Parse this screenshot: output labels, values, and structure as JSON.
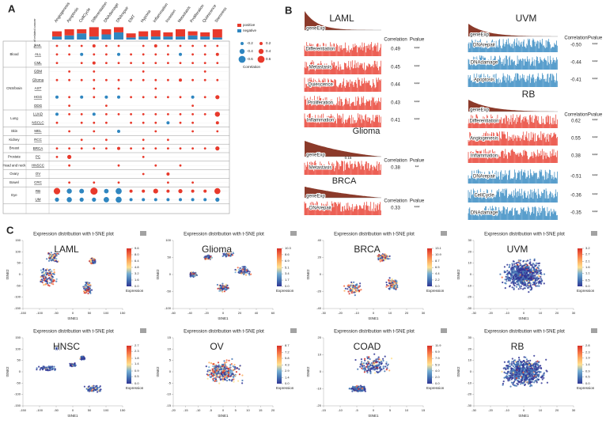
{
  "panel_a": {
    "label": "A",
    "bar_axis_label": "No. of related cancer",
    "columns": [
      "Angiogenesis",
      "Apoptosis",
      "CellCycle",
      "Differentiation",
      "DNAdamage",
      "DNArepair",
      "EMT",
      "Hypoxia",
      "Inflammation",
      "Invasion",
      "Metastasis",
      "Proliferation",
      "Quiescence",
      "Stemness"
    ],
    "positive_counts": [
      5,
      6,
      4,
      9,
      5,
      5,
      4,
      5,
      6,
      4,
      7,
      4,
      4,
      8
    ],
    "negative_counts": [
      3,
      4,
      6,
      3,
      5,
      7,
      2,
      3,
      3,
      3,
      3,
      4,
      3,
      2
    ],
    "positive_color": "#e8392b",
    "negative_color": "#2f86c0",
    "legend": {
      "positive": "positive",
      "negative": "negative",
      "title": "Correlation",
      "sizes": [
        -0.2,
        -0.4,
        -0.6,
        0.2,
        0.4,
        0.6
      ]
    },
    "groups": [
      {
        "name": "Blood",
        "rows": [
          {
            "name": "AML",
            "values": [
              0.1,
              0.1,
              0.1,
              0.2,
              0.1,
              0.1,
              null,
              0.1,
              0.2,
              0.1,
              0.1,
              0.1,
              0.1,
              0.1
            ]
          },
          {
            "name": "ALL",
            "values": [
              0.1,
              0.1,
              -0.2,
              0.1,
              0.1,
              -0.2,
              0.1,
              0.1,
              0.1,
              0.1,
              -0.2,
              0.1,
              0.1,
              0.2
            ]
          },
          {
            "name": "CML",
            "values": [
              0.1,
              null,
              0.1,
              0.2,
              0.1,
              0.1,
              0.1,
              0.1,
              0.1,
              0.1,
              0.1,
              0.1,
              0.1,
              0.1
            ]
          }
        ]
      },
      {
        "name": "CNS/brain",
        "rows": [
          {
            "name": "GBM",
            "values": [
              null,
              0.1,
              null,
              0.1,
              null,
              null,
              null,
              0.1,
              null,
              null,
              null,
              null,
              0.1,
              null
            ]
          },
          {
            "name": "Glioma",
            "values": [
              0.1,
              0.1,
              0.1,
              0.1,
              0.1,
              0.1,
              0.1,
              0.1,
              0.1,
              0.1,
              0.2,
              0.1,
              0.1,
              0.1
            ]
          },
          {
            "name": "AST",
            "values": [
              null,
              null,
              null,
              0.1,
              null,
              0.1,
              null,
              null,
              0.1,
              null,
              null,
              null,
              null,
              null
            ]
          },
          {
            "name": "HGG",
            "values": [
              -0.2,
              0.1,
              -0.2,
              0.1,
              -0.2,
              -0.2,
              0.1,
              0.1,
              0.1,
              0.1,
              0.1,
              -0.2,
              0.1,
              0.3
            ]
          },
          {
            "name": "ODG",
            "values": [
              null,
              0.1,
              null,
              null,
              0.1,
              null,
              null,
              null,
              null,
              null,
              null,
              0.1,
              null,
              null
            ]
          }
        ]
      },
      {
        "name": "Lung",
        "rows": [
          {
            "name": "LUAD",
            "values": [
              -0.2,
              0.1,
              0.1,
              -0.2,
              0.1,
              0.1,
              0.1,
              0.1,
              0.1,
              0.1,
              0.1,
              0.1,
              0.1,
              0.4
            ]
          },
          {
            "name": "NSCLC",
            "values": [
              0.1,
              null,
              0.1,
              0.1,
              0.1,
              null,
              0.1,
              0.1,
              0.1,
              -0.2,
              0.1,
              0.1,
              null,
              0.2
            ]
          }
        ]
      },
      {
        "name": "Skin",
        "rows": [
          {
            "name": "MEL",
            "values": [
              null,
              0.1,
              null,
              0.1,
              null,
              -0.2,
              null,
              null,
              0.1,
              null,
              null,
              0.1,
              null,
              0.1
            ]
          }
        ]
      },
      {
        "name": "Kidney",
        "rows": [
          {
            "name": "RCC",
            "values": [
              null,
              null,
              0.1,
              null,
              0.1,
              null,
              null,
              0.1,
              null,
              0.1,
              null,
              null,
              null,
              null
            ]
          }
        ]
      },
      {
        "name": "Breast",
        "rows": [
          {
            "name": "BRCA",
            "values": [
              0.1,
              0.1,
              0.1,
              0.1,
              0.1,
              0.2,
              0.1,
              0.1,
              0.1,
              0.1,
              0.1,
              0.1,
              0.1,
              0.3
            ]
          }
        ]
      },
      {
        "name": "Prostate",
        "rows": [
          {
            "name": "PC",
            "values": [
              0.1,
              0.3,
              null,
              null,
              null,
              null,
              null,
              0.1,
              null,
              null,
              null,
              null,
              null,
              null
            ]
          }
        ]
      },
      {
        "name": "Head and neck",
        "rows": [
          {
            "name": "HNSCC",
            "values": [
              null,
              0.1,
              null,
              null,
              null,
              0.1,
              null,
              null,
              0.1,
              null,
              0.1,
              null,
              null,
              null
            ]
          }
        ]
      },
      {
        "name": "Ovary",
        "rows": [
          {
            "name": "OV",
            "values": [
              null,
              null,
              null,
              null,
              null,
              null,
              null,
              0.1,
              null,
              0.2,
              null,
              null,
              null,
              null
            ]
          }
        ]
      },
      {
        "name": "Bowel",
        "rows": [
          {
            "name": "CRC",
            "values": [
              null,
              0.1,
              null,
              0.1,
              null,
              0.1,
              null,
              null,
              null,
              0.1,
              null,
              0.1,
              null,
              null
            ]
          }
        ]
      },
      {
        "name": "Eye",
        "rows": [
          {
            "name": "RB",
            "values": [
              0.55,
              -0.4,
              -0.36,
              0.62,
              -0.35,
              -0.51,
              0.2,
              0.2,
              0.38,
              0.2,
              0.3,
              0.2,
              0.2,
              0.5
            ]
          },
          {
            "name": "UM",
            "values": [
              -0.3,
              -0.41,
              -0.3,
              -0.3,
              -0.44,
              -0.5,
              -0.2,
              -0.2,
              -0.2,
              -0.2,
              -0.2,
              -0.2,
              -0.2,
              -0.3
            ]
          }
        ]
      }
    ]
  },
  "panel_b": {
    "label": "B",
    "gene_label": "geneExp",
    "correlation_header": "Correlation",
    "pvalue_header": "Pvalue",
    "positive_color": "#e8392b",
    "negative_color": "#2f86c0",
    "gene_color": "#8b3a2a",
    "blocks": [
      {
        "name": "LAML",
        "rows": [
          {
            "label": "Differentiation",
            "correlation": 0.49,
            "pvalue": "***"
          },
          {
            "label": "Metastasis",
            "correlation": 0.45,
            "pvalue": "***"
          },
          {
            "label": "Quiescence",
            "correlation": 0.44,
            "pvalue": "***"
          },
          {
            "label": "Proliferation",
            "correlation": 0.43,
            "pvalue": "***"
          },
          {
            "label": "Inflammation",
            "correlation": 0.41,
            "pvalue": "***",
            "highlight": true
          }
        ]
      },
      {
        "name": "Glioma",
        "annotation": 0.16,
        "rows": [
          {
            "label": "Metastasis",
            "correlation": 0.38,
            "pvalue": "**",
            "highlight": true
          }
        ]
      },
      {
        "name": "BRCA",
        "rows": [
          {
            "label": "DNArepair",
            "correlation": 0.33,
            "pvalue": "***",
            "highlight": true
          }
        ]
      },
      {
        "name": "UVM",
        "rows": [
          {
            "label": "DNArepair",
            "correlation": {
              "value": -0.5,
              "label": "-0.50"
            },
            "pvalue": "***",
            "highlight": true
          },
          {
            "label": "DNAdamage",
            "correlation": -0.44,
            "pvalue": "***"
          },
          {
            "label": "Apoptosis",
            "correlation": -0.41,
            "pvalue": "***"
          }
        ]
      },
      {
        "name": "RB",
        "rows": [
          {
            "label": "Differentiation",
            "correlation": 0.62,
            "pvalue": "***",
            "highlight": true
          },
          {
            "label": "Angiogenesis",
            "correlation": 0.55,
            "pvalue": "***"
          },
          {
            "label": "Inflammation",
            "correlation": 0.38,
            "pvalue": "***"
          },
          {
            "label": "DNArepair",
            "correlation": -0.51,
            "pvalue": "***"
          },
          {
            "label": "CellCycle",
            "correlation": -0.36,
            "pvalue": "***"
          },
          {
            "label": "DNAdamage",
            "correlation": -0.35,
            "pvalue": "***"
          }
        ]
      }
    ]
  },
  "panel_c": {
    "label": "C",
    "title": "Expression distribution with t-SNE plot",
    "x_label": "tSNE1",
    "y_label": "tSNE2",
    "colorbar_label": "Expression",
    "colormap": [
      "#313695",
      "#4575b4",
      "#74add1",
      "#fee090",
      "#fdae61",
      "#f46d43",
      "#d73027"
    ],
    "plots": [
      {
        "name": "LAML",
        "xlim": [
          -150,
          150
        ],
        "xticks": [
          -150,
          -100,
          -50,
          0,
          50,
          100,
          150
        ],
        "ylim": [
          -150,
          150
        ],
        "yticks": [
          -150,
          -100,
          -50,
          0,
          50,
          100,
          150
        ],
        "colorbar_lim": [
          0,
          9.6
        ],
        "colorbar_ticks": [
          9.6,
          {
            "value": 8,
            "label": "8.0"
          },
          6.4,
          4.8,
          3.2,
          1.6,
          {
            "value": 0,
            "label": "0.0"
          }
        ]
      },
      {
        "name": "Glioma",
        "xlim": [
          -60,
          60
        ],
        "xticks": [
          -60,
          -40,
          -20,
          0,
          20,
          40,
          60
        ],
        "ylim": [
          -100,
          100
        ],
        "yticks": [
          -100,
          -50,
          0,
          50,
          100
        ],
        "colorbar_lim": [
          0,
          10.3
        ],
        "colorbar_ticks": [
          10.3,
          8.6,
          6.9,
          5.1,
          3.4,
          1.7,
          {
            "value": 0,
            "label": "0.0"
          }
        ]
      },
      {
        "name": "BRCA",
        "xlim": [
          -30,
          30
        ],
        "xticks": [
          -30,
          -20,
          -10,
          0,
          10,
          20,
          30
        ],
        "ylim": [
          -40,
          40
        ],
        "yticks": [
          -40,
          -20,
          0,
          20,
          40
        ],
        "colorbar_lim": [
          0,
          13.1
        ],
        "colorbar_ticks": [
          13.1,
          10.9,
          8.7,
          6.5,
          4.4,
          2.2,
          {
            "value": 0,
            "label": "0.0"
          }
        ]
      },
      {
        "name": "UVM",
        "xlim": [
          -30,
          30
        ],
        "xticks": [
          -30,
          -20,
          -10,
          0,
          10,
          20,
          30
        ],
        "ylim": [
          -30,
          30
        ],
        "yticks": [
          -30,
          -20,
          -10,
          0,
          10,
          20,
          30
        ],
        "colorbar_lim": [
          0,
          3.2
        ],
        "colorbar_ticks": [
          3.2,
          2.7,
          2.1,
          1.6,
          1.1,
          0.5,
          {
            "value": 0,
            "label": "0.0"
          }
        ]
      },
      {
        "name": "HNSC",
        "xlim": [
          -150,
          150
        ],
        "xticks": [
          -150,
          -100,
          -50,
          0,
          50,
          100,
          150
        ],
        "ylim": [
          -150,
          150
        ],
        "yticks": [
          -150,
          -100,
          -50,
          0,
          50,
          100,
          150
        ],
        "colorbar_lim": [
          0,
          2.7
        ],
        "colorbar_ticks": [
          2.7,
          2.3,
          1.8,
          1.4,
          0.9,
          0.5,
          {
            "value": 0,
            "label": "0.0"
          }
        ]
      },
      {
        "name": "OV",
        "xlim": [
          -20,
          20
        ],
        "xticks": [
          -20,
          -15,
          -10,
          -5,
          0,
          5,
          10,
          15,
          20
        ],
        "ylim": [
          -15,
          15
        ],
        "yticks": [
          -15,
          -10,
          -5,
          0,
          5,
          10,
          15
        ],
        "colorbar_lim": [
          0,
          8.7
        ],
        "colorbar_ticks": [
          8.7,
          7.2,
          5.8,
          4.3,
          2.9,
          1.4,
          {
            "value": 0,
            "label": "0.0"
          }
        ]
      },
      {
        "name": "COAD",
        "xlim": [
          -15,
          15
        ],
        "xticks": [
          -15,
          -10,
          -5,
          0,
          5,
          10,
          15
        ],
        "ylim": [
          -20,
          20
        ],
        "yticks": [
          -20,
          -10,
          0,
          10,
          20
        ],
        "colorbar_lim": [
          0,
          11.9
        ],
        "colorbar_ticks": [
          11.9,
          9.9,
          7.9,
          5.9,
          {
            "value": 4,
            "label": "4.0"
          },
          {
            "value": 2,
            "label": "2.0"
          },
          {
            "value": 0,
            "label": "0.0"
          }
        ]
      },
      {
        "name": "RB",
        "xlim": [
          -30,
          30
        ],
        "xticks": [
          -30,
          -20,
          -10,
          0,
          10,
          20,
          30
        ],
        "ylim": [
          -30,
          30
        ],
        "yticks": [
          -30,
          -20,
          -10,
          0,
          10,
          20,
          30
        ],
        "colorbar_lim": [
          0,
          2.8
        ],
        "colorbar_ticks": [
          2.8,
          2.3,
          1.9,
          1.4,
          0.9,
          0.5,
          {
            "value": 0,
            "label": "0.0"
          }
        ]
      }
    ]
  }
}
